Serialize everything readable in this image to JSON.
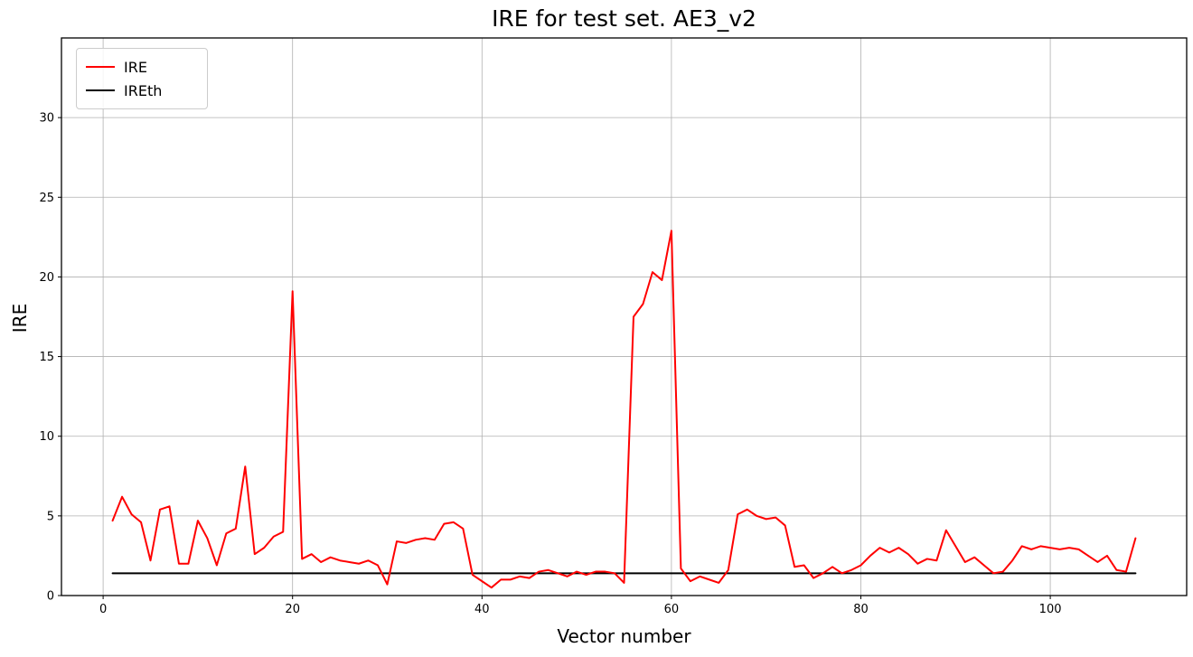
{
  "chart_data": {
    "type": "line",
    "title": "IRE for test set. AE3_v2",
    "xlabel": "Vector number",
    "ylabel": "IRE",
    "xlim": [
      -4.4,
      114.4
    ],
    "ylim": [
      0,
      35
    ],
    "xticks": [
      0,
      20,
      40,
      60,
      80,
      100
    ],
    "yticks": [
      0,
      5,
      10,
      15,
      20,
      25,
      30
    ],
    "grid": true,
    "grid_color": "#b0b0b0",
    "background": "#ffffff",
    "legend": {
      "position": "upper-left",
      "entries": [
        {
          "label": "IRE",
          "color": "#ff0000"
        },
        {
          "label": "IREth",
          "color": "#000000"
        }
      ]
    },
    "series": [
      {
        "name": "IREth",
        "color": "#000000",
        "width": 2,
        "x": [
          1,
          109
        ],
        "y": [
          1.4,
          1.4
        ]
      },
      {
        "name": "IRE",
        "color": "#ff0000",
        "width": 2,
        "x": [
          1,
          2,
          3,
          4,
          5,
          6,
          7,
          8,
          9,
          10,
          11,
          12,
          13,
          14,
          15,
          16,
          17,
          18,
          19,
          20,
          21,
          22,
          23,
          24,
          25,
          26,
          27,
          28,
          29,
          30,
          31,
          32,
          33,
          34,
          35,
          36,
          37,
          38,
          39,
          40,
          41,
          42,
          43,
          44,
          45,
          46,
          47,
          48,
          49,
          50,
          51,
          52,
          53,
          54,
          55,
          56,
          57,
          58,
          59,
          60,
          61,
          62,
          63,
          64,
          65,
          66,
          67,
          68,
          69,
          70,
          71,
          72,
          73,
          74,
          75,
          76,
          77,
          78,
          79,
          80,
          81,
          82,
          83,
          84,
          85,
          86,
          87,
          88,
          89,
          90,
          91,
          92,
          93,
          94,
          95,
          96,
          97,
          98,
          99,
          100,
          101,
          102,
          103,
          104,
          105,
          106,
          107,
          108,
          109
        ],
        "y": [
          4.7,
          6.2,
          5.1,
          4.6,
          2.2,
          5.4,
          5.6,
          2.0,
          2.0,
          4.7,
          3.6,
          1.9,
          3.9,
          4.2,
          8.1,
          2.6,
          3.0,
          3.7,
          4.0,
          19.1,
          2.3,
          2.6,
          2.1,
          2.4,
          2.2,
          2.1,
          2.0,
          2.2,
          1.9,
          0.7,
          3.4,
          3.3,
          3.5,
          3.6,
          3.5,
          4.5,
          4.6,
          4.2,
          1.3,
          0.9,
          0.5,
          1.0,
          1.0,
          1.2,
          1.1,
          1.5,
          1.6,
          1.4,
          1.2,
          1.5,
          1.3,
          1.5,
          1.5,
          1.4,
          0.8,
          17.5,
          18.3,
          20.3,
          19.8,
          22.9,
          1.7,
          0.9,
          1.2,
          1.0,
          0.8,
          1.6,
          5.1,
          5.4,
          5.0,
          4.8,
          4.9,
          4.4,
          1.8,
          1.9,
          1.1,
          1.4,
          1.8,
          1.4,
          1.6,
          1.9,
          2.5,
          3.0,
          2.7,
          3.0,
          2.6,
          2.0,
          2.3,
          2.2,
          4.1,
          3.1,
          2.1,
          2.4,
          1.9,
          1.4,
          1.5,
          2.2,
          3.1,
          2.9,
          3.1,
          3.0,
          2.9,
          3.0,
          2.9,
          2.5,
          2.1,
          2.5,
          1.6,
          1.5,
          3.6
        ]
      }
    ]
  }
}
